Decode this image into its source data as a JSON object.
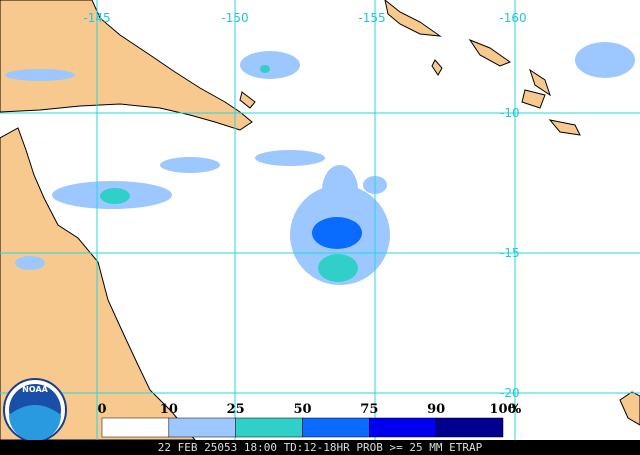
{
  "map": {
    "longitude_labels": [
      "-145",
      "-150",
      "-155",
      "-160"
    ],
    "latitude_labels": [
      "-10",
      "-15",
      "-20"
    ]
  },
  "legend": {
    "labels": [
      "0",
      "10",
      "25",
      "50",
      "75",
      "90",
      "100"
    ],
    "unit": "%",
    "colors": [
      "#ffffff",
      "#9cc8ff",
      "#30d0c8",
      "#0a6cff",
      "#0000f0",
      "#000090"
    ]
  },
  "logo": "NOAA",
  "footer": "22 FEB 25053 18:00 TD:12-18HR PROB >= 25 MM ETRAP"
}
